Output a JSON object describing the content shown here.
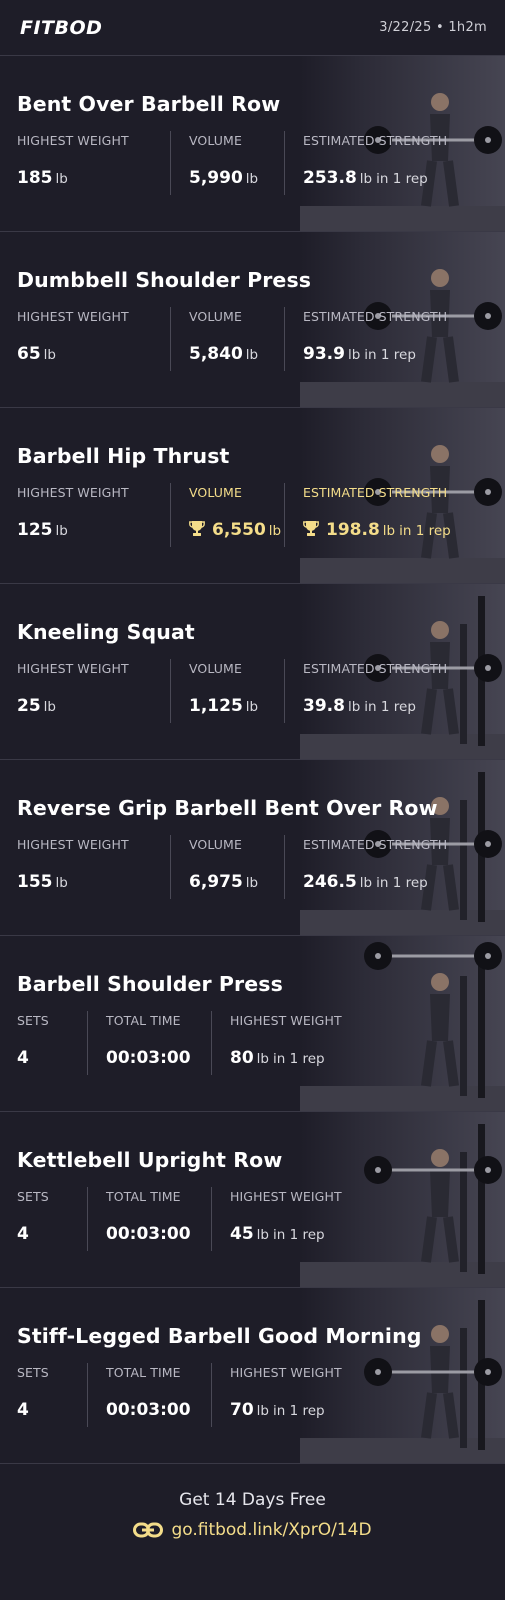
{
  "header": {
    "logo": "FITBOD",
    "meta": "3/22/25 • 1h2m"
  },
  "exercises": [
    {
      "title": "Bent Over Barbell Row",
      "stats": [
        {
          "label": "HIGHEST WEIGHT",
          "value": "185",
          "unit": "lb",
          "sub": "",
          "trophy": false
        },
        {
          "label": "VOLUME",
          "value": "5,990",
          "unit": "lb",
          "sub": "",
          "trophy": false
        },
        {
          "label": "ESTIMATED STRENGTH",
          "value": "253.8",
          "unit": "lb",
          "sub": "in 1 rep",
          "trophy": false
        }
      ]
    },
    {
      "title": "Dumbbell Shoulder Press",
      "stats": [
        {
          "label": "HIGHEST WEIGHT",
          "value": "65",
          "unit": "lb",
          "sub": "",
          "trophy": false
        },
        {
          "label": "VOLUME",
          "value": "5,840",
          "unit": "lb",
          "sub": "",
          "trophy": false
        },
        {
          "label": "ESTIMATED STRENGTH",
          "value": "93.9",
          "unit": "lb",
          "sub": "in 1 rep",
          "trophy": false
        }
      ]
    },
    {
      "title": "Barbell Hip Thrust",
      "stats": [
        {
          "label": "HIGHEST WEIGHT",
          "value": "125",
          "unit": "lb",
          "sub": "",
          "trophy": false
        },
        {
          "label": "VOLUME",
          "value": "6,550",
          "unit": "lb",
          "sub": "",
          "trophy": true
        },
        {
          "label": "ESTIMATED STRENGTH",
          "value": "198.8",
          "unit": "lb",
          "sub": "in 1 rep",
          "trophy": true
        }
      ]
    },
    {
      "title": "Kneeling Squat",
      "stats": [
        {
          "label": "HIGHEST WEIGHT",
          "value": "25",
          "unit": "lb",
          "sub": "",
          "trophy": false
        },
        {
          "label": "VOLUME",
          "value": "1,125",
          "unit": "lb",
          "sub": "",
          "trophy": false
        },
        {
          "label": "ESTIMATED STRENGTH",
          "value": "39.8",
          "unit": "lb",
          "sub": "in 1 rep",
          "trophy": false
        }
      ]
    },
    {
      "title": "Reverse Grip Barbell Bent Over Row",
      "stats": [
        {
          "label": "HIGHEST WEIGHT",
          "value": "155",
          "unit": "lb",
          "sub": "",
          "trophy": false
        },
        {
          "label": "VOLUME",
          "value": "6,975",
          "unit": "lb",
          "sub": "",
          "trophy": false
        },
        {
          "label": "ESTIMATED STRENGTH",
          "value": "246.5",
          "unit": "lb",
          "sub": "in 1 rep",
          "trophy": false
        }
      ]
    },
    {
      "title": "Barbell Shoulder Press",
      "stats": [
        {
          "label": "SETS",
          "value": "4",
          "unit": "",
          "sub": "",
          "trophy": false
        },
        {
          "label": "TOTAL TIME",
          "value": "00:03:00",
          "unit": "",
          "sub": "",
          "trophy": false
        },
        {
          "label": "HIGHEST WEIGHT",
          "value": "80",
          "unit": "lb",
          "sub": "in 1 rep",
          "trophy": false
        }
      ]
    },
    {
      "title": "Kettlebell Upright Row",
      "stats": [
        {
          "label": "SETS",
          "value": "4",
          "unit": "",
          "sub": "",
          "trophy": false
        },
        {
          "label": "TOTAL TIME",
          "value": "00:03:00",
          "unit": "",
          "sub": "",
          "trophy": false
        },
        {
          "label": "HIGHEST WEIGHT",
          "value": "45",
          "unit": "lb",
          "sub": "in 1 rep",
          "trophy": false
        }
      ]
    },
    {
      "title": "Stiff-Legged Barbell Good Morning",
      "stats": [
        {
          "label": "SETS",
          "value": "4",
          "unit": "",
          "sub": "",
          "trophy": false
        },
        {
          "label": "TOTAL TIME",
          "value": "00:03:00",
          "unit": "",
          "sub": "",
          "trophy": false
        },
        {
          "label": "HIGHEST WEIGHT",
          "value": "70",
          "unit": "lb",
          "sub": "in 1 rep",
          "trophy": false
        }
      ]
    }
  ],
  "footer": {
    "cta": "Get 14 Days Free",
    "link": "go.fitbod.link/XprO/14D",
    "link_icon": "link-icon"
  },
  "colors": {
    "background": "#1e1d28",
    "accent_gold": "#f4dd8a",
    "divider": "#3a3946"
  }
}
